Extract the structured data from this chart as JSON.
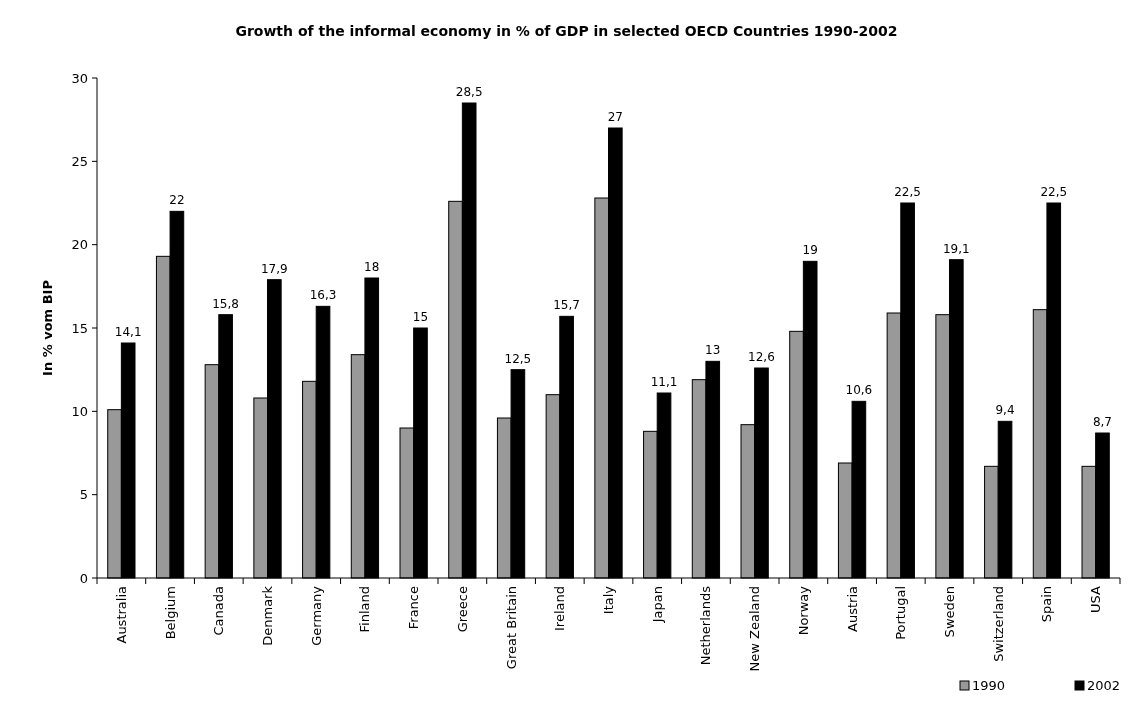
{
  "chart_data": {
    "type": "bar",
    "title": "Growth of the informal economy in % of GDP in  selected OECD Countries 1990-2002",
    "ylabel": "In % vom BIP",
    "categories": [
      "Australia",
      "Belgium",
      "Canada",
      "Denmark",
      "Germany",
      "Finland",
      "France",
      "Greece",
      "Great Britain",
      "Ireland",
      "Italy",
      "Japan",
      "Netherlands",
      "New Zealand",
      "Norway",
      "Austria",
      "Portugal",
      "Sweden",
      "Switzerland",
      "Spain",
      "USA"
    ],
    "series": [
      {
        "name": "1990",
        "color": "#999999",
        "values": [
          10.1,
          19.3,
          12.8,
          10.8,
          11.8,
          13.4,
          9.0,
          22.6,
          9.6,
          11.0,
          22.8,
          8.8,
          11.9,
          9.2,
          14.8,
          6.9,
          15.9,
          15.8,
          6.7,
          16.1,
          6.7
        ]
      },
      {
        "name": "2002",
        "color": "#000000",
        "values": [
          14.1,
          22,
          15.8,
          17.9,
          16.3,
          18,
          15,
          28.5,
          12.5,
          15.7,
          27,
          11.1,
          13,
          12.6,
          19,
          10.6,
          22.5,
          19.1,
          9.4,
          22.5,
          8.7
        ],
        "value_labels": [
          "14,1",
          "22",
          "15,8",
          "17,9",
          "16,3",
          "18",
          "15",
          "28,5",
          "12,5",
          "15,7",
          "27",
          "11,1",
          "13",
          "12,6",
          "19",
          "10,6",
          "22,5",
          "19,1",
          "9,4",
          "22,5",
          "8,7"
        ]
      }
    ],
    "ylim": [
      0,
      30
    ],
    "yticks": [
      0,
      5,
      10,
      15,
      20,
      25,
      30
    ],
    "grid": false,
    "legend": "bottom right"
  }
}
